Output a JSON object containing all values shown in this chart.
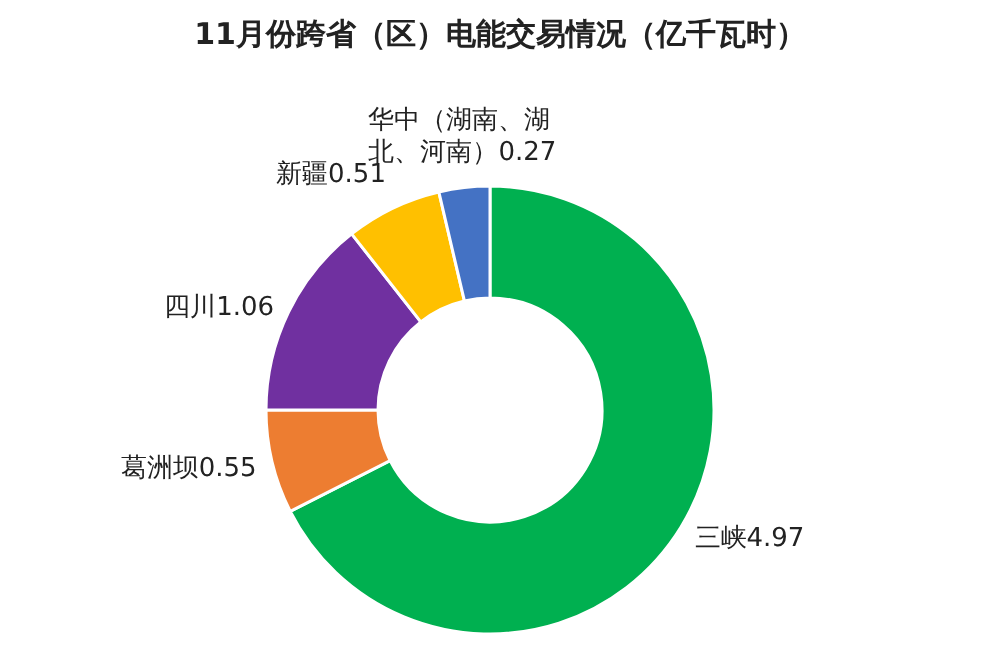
{
  "chart_data": {
    "type": "donut",
    "title": "11月份跨省（区）电能交易情况（亿千瓦时）",
    "categories": [
      "三峡",
      "葛洲坝",
      "四川",
      "新疆",
      "华中（湖南、湖北、河南）"
    ],
    "values": [
      4.97,
      0.55,
      1.06,
      0.51,
      0.27
    ],
    "colors": [
      "#00b050",
      "#ed7d31",
      "#7030a0",
      "#ffc000",
      "#4472c4"
    ],
    "data_labels": true
  }
}
